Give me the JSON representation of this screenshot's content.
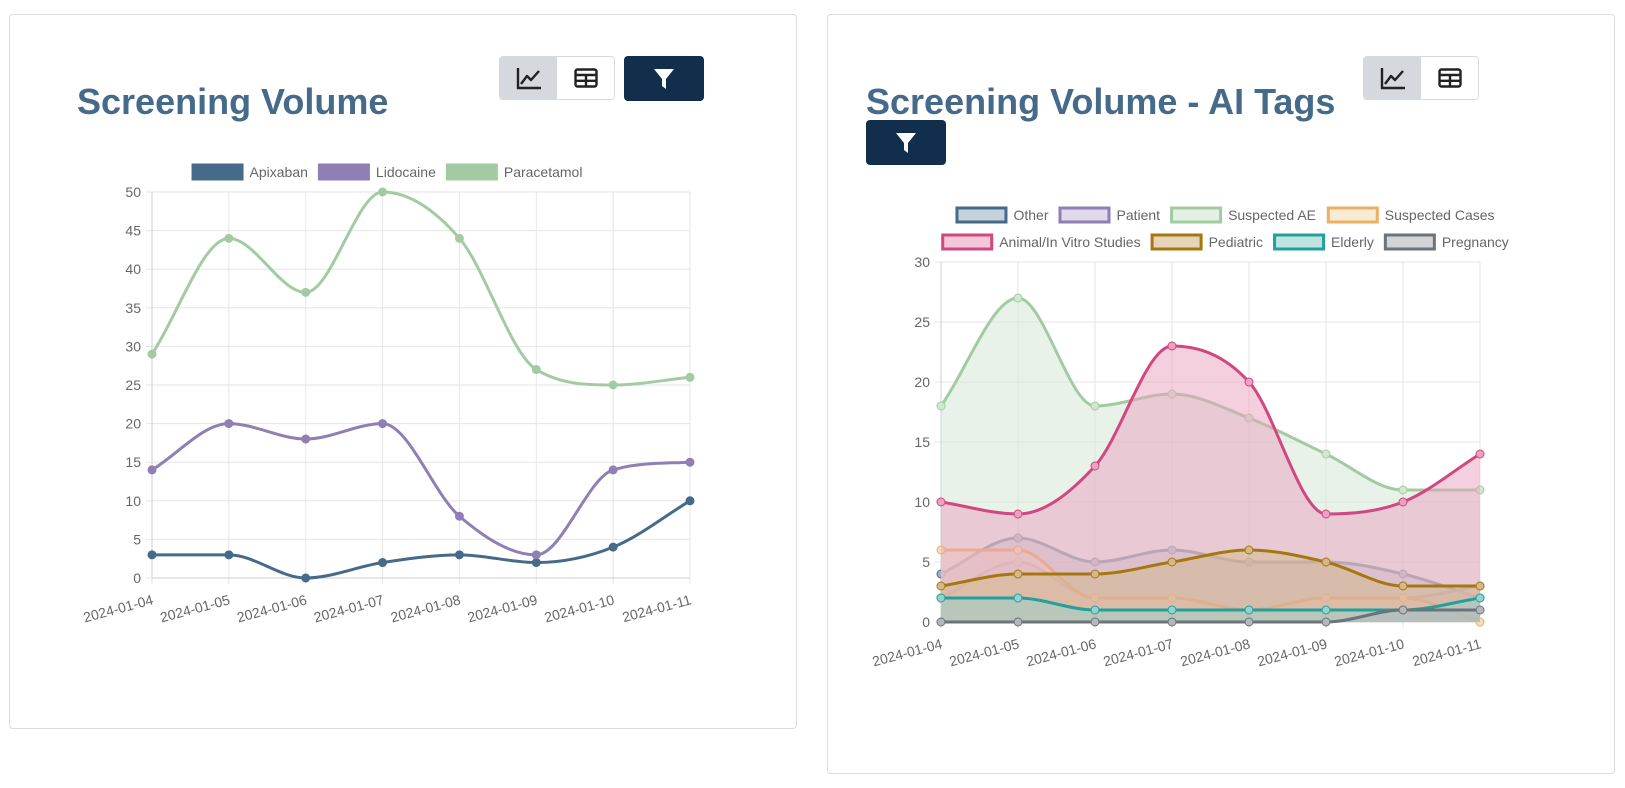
{
  "icons": {
    "line_view": "line-chart-icon",
    "table_view": "table-icon",
    "filter": "filter-icon"
  },
  "colors": {
    "title": "#456a8a",
    "filter_button": "#112e4d",
    "active_toggle": "#d5d9de"
  },
  "panel1": {
    "title": "Screening Volume"
  },
  "panel2": {
    "title": "Screening Volume - AI Tags"
  },
  "chart_data": [
    {
      "type": "line",
      "title": "Screening Volume",
      "x": [
        "2024-01-04",
        "2024-01-05",
        "2024-01-06",
        "2024-01-07",
        "2024-01-08",
        "2024-01-09",
        "2024-01-10",
        "2024-01-11"
      ],
      "ylim": [
        0,
        50
      ],
      "yticks": [
        0,
        5,
        10,
        15,
        20,
        25,
        30,
        35,
        40,
        45,
        50
      ],
      "grid": true,
      "legend_position": "top",
      "series": [
        {
          "name": "Apixaban",
          "color": "#456a8a",
          "values": [
            3,
            3,
            0,
            2,
            3,
            2,
            4,
            10
          ]
        },
        {
          "name": "Lidocaine",
          "color": "#8f7fb4",
          "values": [
            14,
            20,
            18,
            20,
            8,
            3,
            14,
            15
          ]
        },
        {
          "name": "Paracetamol",
          "color": "#a3cba3",
          "values": [
            29,
            44,
            37,
            50,
            44,
            27,
            25,
            26
          ]
        }
      ]
    },
    {
      "type": "area",
      "title": "Screening Volume - AI Tags",
      "x": [
        "2024-01-04",
        "2024-01-05",
        "2024-01-06",
        "2024-01-07",
        "2024-01-08",
        "2024-01-09",
        "2024-01-10",
        "2024-01-11"
      ],
      "ylim": [
        0,
        30
      ],
      "yticks": [
        0,
        5,
        10,
        15,
        20,
        25,
        30
      ],
      "grid": true,
      "legend_position": "top",
      "series": [
        {
          "name": "Other",
          "color": "#456a8a",
          "fill": "#9fb2c3",
          "values": [
            4,
            7,
            5,
            6,
            5,
            5,
            4,
            2
          ]
        },
        {
          "name": "Patient",
          "color": "#8f7fb4",
          "fill": "#c9c0dc",
          "values": [
            2,
            5,
            2,
            2,
            1,
            2,
            2,
            3
          ]
        },
        {
          "name": "Suspected AE",
          "color": "#a3cba3",
          "fill": "#d2e6d2",
          "values": [
            18,
            27,
            18,
            19,
            17,
            14,
            11,
            11
          ]
        },
        {
          "name": "Suspected Cases",
          "color": "#ebb061",
          "fill": "#f4ddbb",
          "values": [
            6,
            6,
            2,
            2,
            1,
            2,
            2,
            0
          ]
        },
        {
          "name": "Animal/In Vitro Studies",
          "color": "#d1477f",
          "fill": "#e9a2c0",
          "values": [
            10,
            9,
            13,
            23,
            20,
            9,
            10,
            14
          ]
        },
        {
          "name": "Pediatric",
          "color": "#a5780f",
          "fill": "#d4b88a",
          "values": [
            3,
            4,
            4,
            5,
            6,
            5,
            3,
            3
          ]
        },
        {
          "name": "Elderly",
          "color": "#21a09c",
          "fill": "#95d1cd",
          "values": [
            2,
            2,
            1,
            1,
            1,
            1,
            1,
            2
          ]
        },
        {
          "name": "Pregnancy",
          "color": "#6b737b",
          "fill": "#b4b8bc",
          "values": [
            0,
            0,
            0,
            0,
            0,
            0,
            1,
            1
          ]
        }
      ]
    }
  ]
}
